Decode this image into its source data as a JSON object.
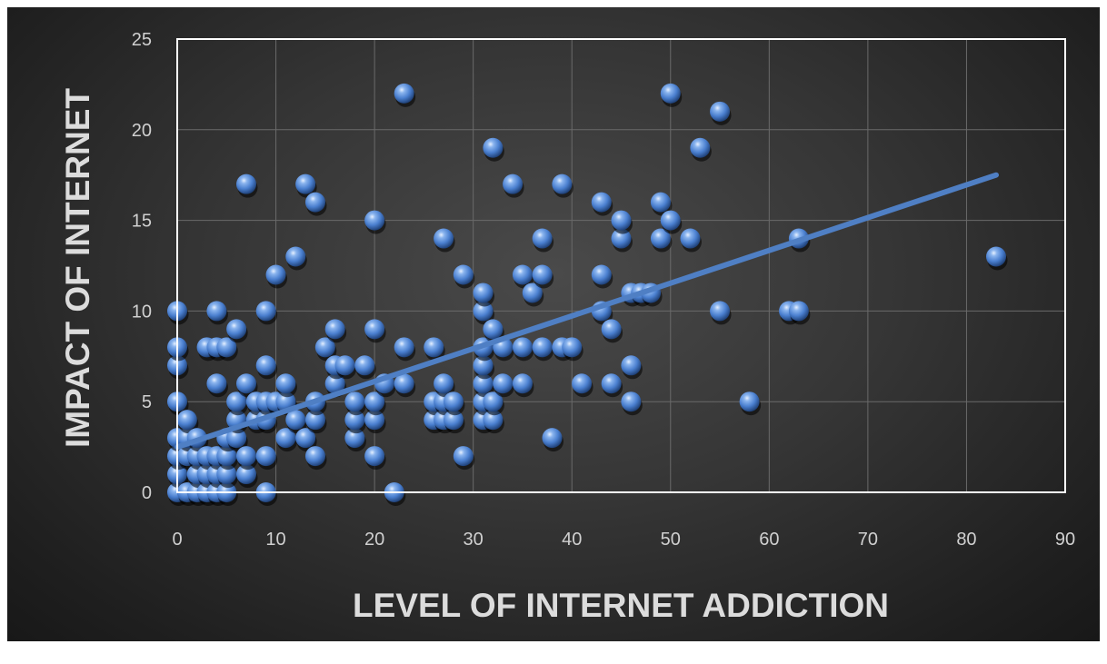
{
  "chart_data": {
    "type": "scatter",
    "title": "",
    "xlabel": "LEVEL OF INTERNET ADDICTION",
    "ylabel": "IMPACT OF INTERNET",
    "xlim": [
      0,
      90
    ],
    "ylim": [
      0,
      25
    ],
    "x_ticks": [
      0,
      10,
      20,
      30,
      40,
      50,
      60,
      70,
      80,
      90
    ],
    "y_ticks": [
      0,
      5,
      10,
      15,
      20,
      25
    ],
    "grid": true,
    "legend": "none",
    "colors": {
      "point": "#5b8fd6",
      "trendline": "#4f7fc4",
      "plot_border": "#ffffff",
      "grid": "#6a6a6a"
    },
    "trendline": {
      "type": "linear",
      "x": [
        0,
        83
      ],
      "y": [
        2.5,
        17.5
      ]
    },
    "series": [
      {
        "points": [
          [
            0,
            0
          ],
          [
            0,
            1
          ],
          [
            0,
            2
          ],
          [
            0,
            3
          ],
          [
            0,
            5
          ],
          [
            0,
            7
          ],
          [
            0,
            8
          ],
          [
            0,
            10
          ],
          [
            1,
            0
          ],
          [
            1,
            2
          ],
          [
            1,
            3
          ],
          [
            1,
            4
          ],
          [
            2,
            0
          ],
          [
            2,
            1
          ],
          [
            2,
            2
          ],
          [
            2,
            3
          ],
          [
            3,
            0
          ],
          [
            3,
            1
          ],
          [
            3,
            2
          ],
          [
            3,
            8
          ],
          [
            4,
            0
          ],
          [
            4,
            1
          ],
          [
            4,
            2
          ],
          [
            4,
            6
          ],
          [
            4,
            8
          ],
          [
            4,
            10
          ],
          [
            5,
            0
          ],
          [
            5,
            1
          ],
          [
            5,
            2
          ],
          [
            5,
            3
          ],
          [
            5,
            8
          ],
          [
            6,
            3
          ],
          [
            6,
            4
          ],
          [
            6,
            5
          ],
          [
            6,
            9
          ],
          [
            7,
            1
          ],
          [
            7,
            2
          ],
          [
            7,
            6
          ],
          [
            7,
            17
          ],
          [
            8,
            4
          ],
          [
            8,
            5
          ],
          [
            9,
            0
          ],
          [
            9,
            2
          ],
          [
            9,
            4
          ],
          [
            9,
            5
          ],
          [
            9,
            7
          ],
          [
            9,
            10
          ],
          [
            10,
            5
          ],
          [
            10,
            12
          ],
          [
            11,
            3
          ],
          [
            11,
            5
          ],
          [
            11,
            6
          ],
          [
            12,
            4
          ],
          [
            12,
            13
          ],
          [
            13,
            3
          ],
          [
            13,
            17
          ],
          [
            14,
            2
          ],
          [
            14,
            4
          ],
          [
            14,
            5
          ],
          [
            14,
            16
          ],
          [
            15,
            8
          ],
          [
            16,
            6
          ],
          [
            16,
            7
          ],
          [
            16,
            9
          ],
          [
            17,
            7
          ],
          [
            18,
            3
          ],
          [
            18,
            4
          ],
          [
            18,
            5
          ],
          [
            19,
            7
          ],
          [
            20,
            2
          ],
          [
            20,
            4
          ],
          [
            20,
            5
          ],
          [
            20,
            9
          ],
          [
            20,
            15
          ],
          [
            21,
            6
          ],
          [
            22,
            0
          ],
          [
            23,
            6
          ],
          [
            23,
            8
          ],
          [
            23,
            22
          ],
          [
            26,
            4
          ],
          [
            26,
            5
          ],
          [
            26,
            8
          ],
          [
            27,
            4
          ],
          [
            27,
            5
          ],
          [
            27,
            6
          ],
          [
            27,
            14
          ],
          [
            28,
            4
          ],
          [
            28,
            5
          ],
          [
            29,
            2
          ],
          [
            29,
            12
          ],
          [
            31,
            4
          ],
          [
            31,
            5
          ],
          [
            31,
            6
          ],
          [
            31,
            7
          ],
          [
            31,
            8
          ],
          [
            31,
            10
          ],
          [
            31,
            11
          ],
          [
            32,
            4
          ],
          [
            32,
            5
          ],
          [
            32,
            9
          ],
          [
            32,
            19
          ],
          [
            33,
            6
          ],
          [
            33,
            8
          ],
          [
            34,
            17
          ],
          [
            35,
            6
          ],
          [
            35,
            8
          ],
          [
            35,
            12
          ],
          [
            36,
            11
          ],
          [
            37,
            8
          ],
          [
            37,
            12
          ],
          [
            37,
            14
          ],
          [
            38,
            3
          ],
          [
            39,
            8
          ],
          [
            39,
            17
          ],
          [
            40,
            8
          ],
          [
            41,
            6
          ],
          [
            43,
            10
          ],
          [
            43,
            12
          ],
          [
            43,
            16
          ],
          [
            44,
            6
          ],
          [
            44,
            9
          ],
          [
            45,
            14
          ],
          [
            45,
            15
          ],
          [
            46,
            5
          ],
          [
            46,
            7
          ],
          [
            46,
            11
          ],
          [
            47,
            11
          ],
          [
            48,
            11
          ],
          [
            49,
            14
          ],
          [
            49,
            16
          ],
          [
            50,
            15
          ],
          [
            50,
            22
          ],
          [
            52,
            14
          ],
          [
            53,
            19
          ],
          [
            55,
            10
          ],
          [
            55,
            21
          ],
          [
            58,
            5
          ],
          [
            62,
            10
          ],
          [
            63,
            10
          ],
          [
            63,
            14
          ],
          [
            83,
            13
          ]
        ]
      }
    ]
  }
}
